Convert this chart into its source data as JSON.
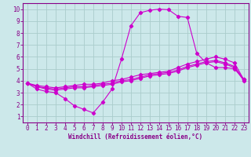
{
  "xlabel": "Windchill (Refroidissement éolien,°C)",
  "bg_color": "#cce8ea",
  "line_color": "#cc00cc",
  "grid_color": "#aacccc",
  "axis_color": "#880088",
  "xlim": [
    -0.5,
    23.5
  ],
  "ylim": [
    0.5,
    10.5
  ],
  "xticks": [
    0,
    1,
    2,
    3,
    4,
    5,
    6,
    7,
    8,
    9,
    10,
    11,
    12,
    13,
    14,
    15,
    16,
    17,
    18,
    19,
    20,
    21,
    22,
    23
  ],
  "yticks": [
    1,
    2,
    3,
    4,
    5,
    6,
    7,
    8,
    9,
    10
  ],
  "line_peak_x": [
    0,
    1,
    2,
    3,
    4,
    5,
    6,
    7,
    8,
    9,
    10,
    11,
    12,
    13,
    14,
    15,
    16,
    17,
    18,
    19,
    20,
    21,
    22,
    23
  ],
  "line_peak_y": [
    3.8,
    3.3,
    3.1,
    3.0,
    2.5,
    1.9,
    1.6,
    1.3,
    2.2,
    3.3,
    5.8,
    8.6,
    9.7,
    9.9,
    10.0,
    9.95,
    9.4,
    9.3,
    6.3,
    5.5,
    5.1,
    5.1,
    5.0,
    4.1
  ],
  "line_upper_x": [
    0,
    1,
    2,
    3,
    4,
    5,
    6,
    7,
    8,
    9,
    10,
    11,
    12,
    13,
    14,
    15,
    16,
    17,
    18,
    19,
    20,
    21,
    22,
    23
  ],
  "line_upper_y": [
    3.8,
    3.6,
    3.5,
    3.4,
    3.5,
    3.6,
    3.7,
    3.7,
    3.8,
    4.0,
    4.1,
    4.3,
    4.5,
    4.6,
    4.7,
    4.8,
    5.1,
    5.4,
    5.6,
    5.8,
    6.0,
    5.8,
    5.5,
    4.1
  ],
  "line_mid_x": [
    0,
    1,
    2,
    3,
    4,
    5,
    6,
    7,
    8,
    9,
    10,
    11,
    12,
    13,
    14,
    15,
    16,
    17,
    18,
    19,
    20,
    21,
    22,
    23
  ],
  "line_mid_y": [
    3.8,
    3.5,
    3.4,
    3.3,
    3.4,
    3.5,
    3.5,
    3.6,
    3.7,
    3.8,
    4.0,
    4.1,
    4.3,
    4.5,
    4.6,
    4.7,
    4.9,
    5.2,
    5.4,
    5.6,
    5.7,
    5.5,
    5.2,
    4.1
  ],
  "line_low_x": [
    0,
    1,
    2,
    3,
    4,
    5,
    6,
    7,
    8,
    9,
    10,
    11,
    12,
    13,
    14,
    15,
    16,
    17,
    18,
    19,
    20,
    21,
    22,
    23
  ],
  "line_low_y": [
    3.8,
    3.5,
    3.3,
    3.2,
    3.3,
    3.4,
    3.4,
    3.5,
    3.6,
    3.7,
    3.9,
    4.0,
    4.2,
    4.4,
    4.5,
    4.6,
    4.8,
    5.1,
    5.3,
    5.5,
    5.6,
    5.4,
    5.1,
    4.0
  ],
  "xlabel_fontsize": 5.5,
  "tick_fontsize": 5.5
}
